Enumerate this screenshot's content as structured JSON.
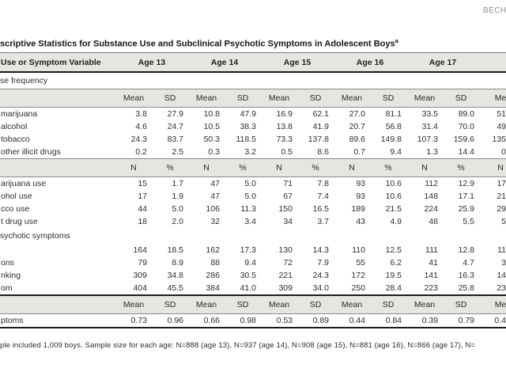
{
  "page": {
    "running_head": "BECH",
    "title": "scriptive Statistics for Substance Use and Subclinical Psychotic Symptoms in Adolescent Boys",
    "title_superscript": "a",
    "footnote": "ple included 1,009 boys. Sample size for each age: N=888 (age 13), N=937 (age 14), N=908 (age 15), N=881 (age 16), N=866 (age 17), N=",
    "band_color": "#e4e6e1"
  },
  "table": {
    "header": {
      "variable_label": "Use or Symptom Variable",
      "ages": [
        "Age 13",
        "Age 14",
        "Age 15",
        "Age 16",
        "Age 17"
      ],
      "partial_age": ""
    },
    "rows": [
      {
        "type": "section",
        "label": "se frequency"
      },
      {
        "type": "band",
        "cells": [
          "Mean",
          "SD",
          "Mean",
          "SD",
          "Mean",
          "SD",
          "Mean",
          "SD",
          "Mean",
          "SD",
          "Me"
        ]
      },
      {
        "type": "data",
        "label": "marijuana",
        "values": [
          "3.8",
          "27.9",
          "10.8",
          "47.9",
          "16.9",
          "62.1",
          "27.0",
          "81.1",
          "33.5",
          "89.0",
          "51"
        ]
      },
      {
        "type": "data",
        "label": "alcohol",
        "values": [
          "4.6",
          "24.7",
          "10.5",
          "38.3",
          "13.8",
          "41.9",
          "20.7",
          "56.8",
          "31.4",
          "70.0",
          "49"
        ]
      },
      {
        "type": "data",
        "label": "tobacco",
        "values": [
          "24.3",
          "83.7",
          "50.3",
          "118.5",
          "73.3",
          "137.8",
          "89.6",
          "149.8",
          "107.3",
          "159.6",
          "135"
        ]
      },
      {
        "type": "data",
        "label": "other illicit drugs",
        "values": [
          "0.2",
          "2.5",
          "0.3",
          "3.2",
          "0.5",
          "8.6",
          "0.7",
          "9.4",
          "1.3",
          "14.4",
          "0"
        ]
      },
      {
        "type": "band",
        "cells": [
          "N",
          "%",
          "N",
          "%",
          "N",
          "%",
          "N",
          "%",
          "N",
          "%",
          "N"
        ]
      },
      {
        "type": "data",
        "label": "arijuana use",
        "values": [
          "15",
          "1.7",
          "47",
          "5.0",
          "71",
          "7.8",
          "93",
          "10.6",
          "112",
          "12.9",
          "17"
        ]
      },
      {
        "type": "data",
        "label": "ohol use",
        "values": [
          "17",
          "1.9",
          "47",
          "5.0",
          "67",
          "7.4",
          "93",
          "10.6",
          "148",
          "17.1",
          "21"
        ]
      },
      {
        "type": "data",
        "label": "cco use",
        "values": [
          "44",
          "5.0",
          "106",
          "11.3",
          "150",
          "16.5",
          "189",
          "21.5",
          "224",
          "25.9",
          "29"
        ]
      },
      {
        "type": "data",
        "label": "t drug use",
        "values": [
          "18",
          "2.0",
          "32",
          "3.4",
          "34",
          "3.7",
          "43",
          "4.9",
          "48",
          "5.5",
          "5"
        ]
      },
      {
        "type": "section",
        "label": "sychotic symptoms"
      },
      {
        "type": "data",
        "label": "",
        "values": [
          "164",
          "18.5",
          "162",
          "17.3",
          "130",
          "14.3",
          "110",
          "12.5",
          "111",
          "12.8",
          "11"
        ]
      },
      {
        "type": "data",
        "label": "ons",
        "values": [
          "79",
          "8.9",
          "88",
          "9.4",
          "72",
          "7.9",
          "55",
          "6.2",
          "41",
          "4.7",
          "3"
        ]
      },
      {
        "type": "data",
        "label": "nking",
        "values": [
          "309",
          "34.8",
          "286",
          "30.5",
          "221",
          "24.3",
          "172",
          "19.5",
          "141",
          "16.3",
          "14"
        ]
      },
      {
        "type": "data",
        "label": "om",
        "values": [
          "404",
          "45.5",
          "384",
          "41.0",
          "309",
          "34.0",
          "250",
          "28.4",
          "223",
          "25.8",
          "23"
        ]
      },
      {
        "type": "band",
        "rule": "thick-top",
        "cells": [
          "Mean",
          "SD",
          "Mean",
          "SD",
          "Mean",
          "SD",
          "Mean",
          "SD",
          "Mean",
          "SD",
          "Me"
        ]
      },
      {
        "type": "data",
        "rule": "thick-bottom",
        "label": "ptoms",
        "values": [
          "0.73",
          "0.96",
          "0.66",
          "0.98",
          "0.53",
          "0.89",
          "0.44",
          "0.84",
          "0.39",
          "0.79",
          "0.4"
        ]
      }
    ]
  }
}
